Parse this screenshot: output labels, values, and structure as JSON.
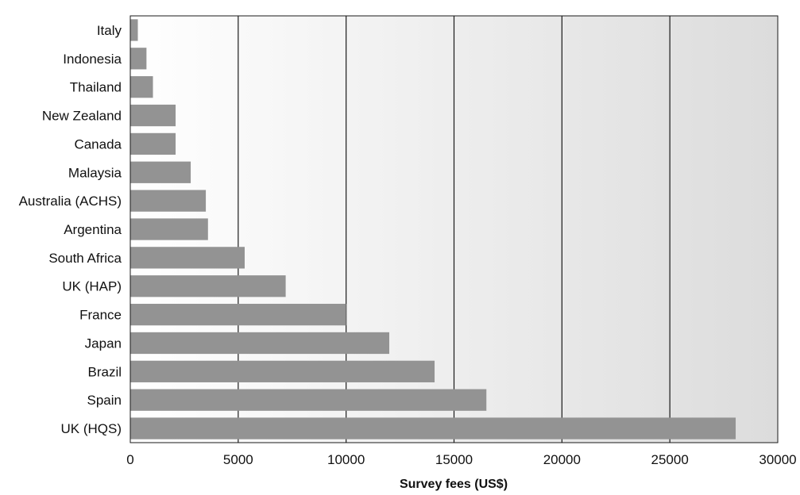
{
  "chart_data": {
    "type": "bar",
    "orientation": "horizontal",
    "categories": [
      "Italy",
      "Indonesia",
      "Thailand",
      "New Zealand",
      "Canada",
      "Malaysia",
      "Australia (ACHS)",
      "Argentina",
      "South Africa",
      "UK (HAP)",
      "France",
      "Japan",
      "Brazil",
      "Spain",
      "UK (HQS)"
    ],
    "values": [
      350,
      750,
      1050,
      2100,
      2100,
      2800,
      3500,
      3600,
      5300,
      7200,
      10000,
      12000,
      14100,
      16500,
      28050
    ],
    "title": "",
    "xlabel": "Survey fees (US$)",
    "ylabel": "",
    "xlim": [
      0,
      30000
    ],
    "xticks": [
      "0",
      "5000",
      "10000",
      "15000",
      "20000",
      "25000",
      "30000"
    ],
    "grid": "vertical",
    "colors": {
      "bar": "#939393",
      "grid": "#1a1a1a",
      "background_left": "#ffffff",
      "background_right": "#dcdcdc"
    }
  }
}
